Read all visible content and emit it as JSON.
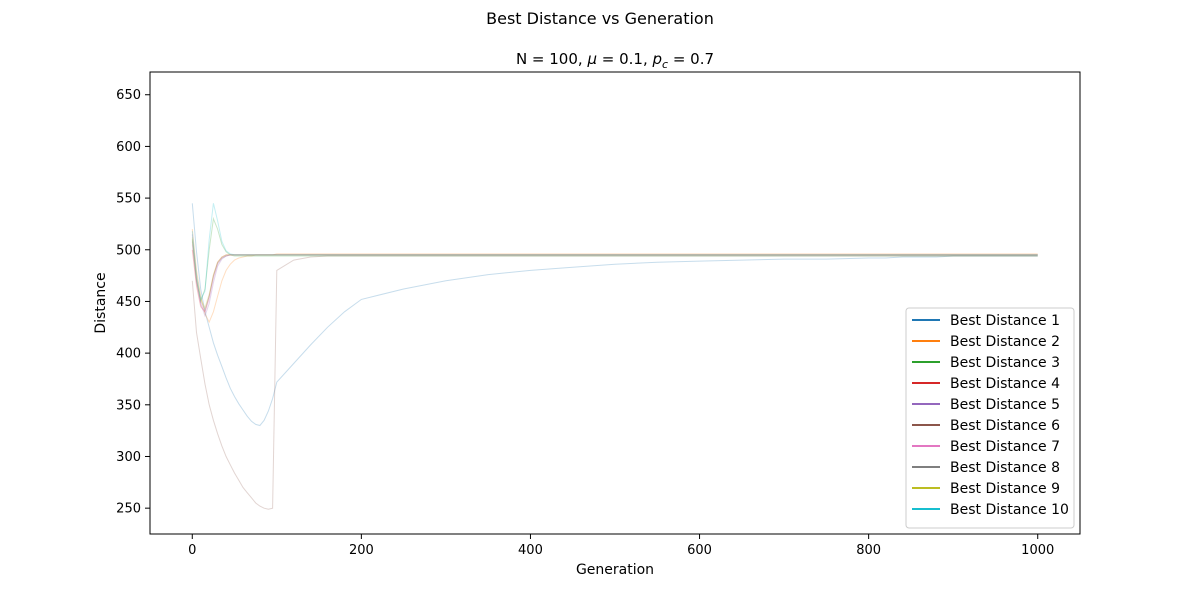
{
  "figure": {
    "suptitle": "Best Distance vs Generation"
  },
  "chart_data": {
    "type": "line",
    "title_prefix": "N = 100, ",
    "title_mu": "μ",
    "title_mid": " = 0.1, ",
    "title_p": "p",
    "title_p_sub": "c",
    "title_suffix": " = 0.7",
    "xlabel": "Generation",
    "ylabel": "Distance",
    "xlim": [
      -50,
      1050
    ],
    "ylim": [
      225,
      672
    ],
    "xticks": [
      0,
      200,
      400,
      600,
      800,
      1000
    ],
    "yticks": [
      250,
      300,
      350,
      400,
      450,
      500,
      550,
      600,
      650
    ],
    "legend_position": "lower-right",
    "series_alpha": 0.25,
    "series": [
      {
        "name": "Best Distance 1",
        "color": "#1f77b4",
        "values": [
          545,
          498,
          462,
          440,
          425,
          410,
          398,
          387,
          376,
          366,
          358,
          351,
          345,
          339,
          334,
          331,
          330,
          335,
          344,
          356,
          372,
          390,
          408,
          425,
          440,
          452,
          462,
          470,
          476,
          480,
          483,
          486,
          488,
          489,
          490,
          491,
          491,
          492,
          492,
          493,
          493,
          493,
          494,
          494,
          494,
          494,
          494,
          494,
          494,
          494,
          494
        ]
      },
      {
        "name": "Best Distance 2",
        "color": "#ff7f0e",
        "values": [
          520,
          480,
          455,
          438,
          430,
          440,
          455,
          470,
          480,
          486,
          490,
          492,
          493,
          494,
          494,
          495,
          495,
          495,
          495,
          495,
          496,
          496,
          496,
          496,
          496,
          496,
          496,
          496,
          496,
          496,
          496,
          496,
          496,
          496,
          496,
          496,
          496,
          496,
          496,
          496,
          496,
          496,
          496,
          496,
          496,
          496,
          496,
          496,
          496,
          496,
          496
        ]
      },
      {
        "name": "Best Distance 3",
        "color": "#2ca02c",
        "values": [
          510,
          470,
          450,
          462,
          500,
          530,
          520,
          505,
          498,
          495,
          494,
          494,
          494,
          494,
          494,
          494,
          494,
          494,
          494,
          494,
          494,
          494,
          494,
          494,
          494,
          494,
          494,
          494,
          494,
          494,
          494,
          494,
          494,
          494,
          494,
          494,
          494,
          494,
          494,
          494,
          494,
          494,
          494,
          494,
          494,
          494,
          494,
          494,
          494,
          494,
          494
        ]
      },
      {
        "name": "Best Distance 4",
        "color": "#d62728",
        "values": [
          500,
          465,
          445,
          440,
          455,
          475,
          488,
          493,
          495,
          495,
          495,
          495,
          495,
          495,
          495,
          495,
          495,
          495,
          495,
          495,
          495,
          495,
          495,
          495,
          495,
          495,
          495,
          495,
          495,
          495,
          495,
          495,
          495,
          495,
          495,
          495,
          495,
          495,
          495,
          495,
          495,
          495,
          495,
          495,
          495,
          495,
          495,
          495,
          495,
          495,
          495
        ]
      },
      {
        "name": "Best Distance 5",
        "color": "#9467bd",
        "values": [
          515,
          472,
          448,
          436,
          448,
          468,
          484,
          491,
          494,
          495,
          495,
          495,
          495,
          495,
          495,
          495,
          495,
          495,
          495,
          495,
          495,
          495,
          495,
          495,
          495,
          495,
          495,
          495,
          495,
          495,
          495,
          495,
          495,
          495,
          495,
          495,
          495,
          495,
          495,
          495,
          495,
          495,
          495,
          495,
          495,
          495,
          495,
          495,
          495,
          495,
          495
        ]
      },
      {
        "name": "Best Distance 6",
        "color": "#8c564b",
        "values": [
          470,
          420,
          395,
          370,
          350,
          335,
          322,
          310,
          300,
          292,
          284,
          277,
          270,
          265,
          260,
          255,
          252,
          250,
          249,
          250,
          480,
          490,
          493,
          494,
          494,
          494,
          494,
          494,
          494,
          494,
          494,
          494,
          494,
          494,
          494,
          494,
          494,
          494,
          494,
          494,
          494,
          494,
          494,
          494,
          494,
          494,
          494,
          494,
          494,
          494,
          494
        ]
      },
      {
        "name": "Best Distance 7",
        "color": "#e377c2",
        "values": [
          505,
          468,
          447,
          440,
          452,
          472,
          486,
          492,
          494,
          495,
          495,
          495,
          495,
          495,
          495,
          495,
          495,
          495,
          495,
          495,
          495,
          495,
          495,
          495,
          495,
          495,
          495,
          495,
          495,
          495,
          495,
          495,
          495,
          495,
          495,
          495,
          495,
          495,
          495,
          495,
          495,
          495,
          495,
          495,
          495,
          495,
          495,
          495,
          495,
          495,
          495
        ]
      },
      {
        "name": "Best Distance 8",
        "color": "#7f7f7f",
        "values": [
          508,
          470,
          450,
          442,
          455,
          474,
          487,
          492,
          494,
          495,
          495,
          495,
          495,
          495,
          495,
          495,
          495,
          495,
          495,
          495,
          495,
          495,
          495,
          495,
          495,
          495,
          495,
          495,
          495,
          495,
          495,
          495,
          495,
          495,
          495,
          495,
          495,
          495,
          495,
          495,
          495,
          495,
          495,
          495,
          495,
          495,
          495,
          495,
          495,
          495,
          495
        ]
      },
      {
        "name": "Best Distance 9",
        "color": "#bcbd22",
        "values": [
          512,
          474,
          452,
          444,
          457,
          476,
          488,
          493,
          495,
          495,
          495,
          495,
          495,
          495,
          495,
          495,
          495,
          495,
          495,
          495,
          495,
          495,
          495,
          495,
          495,
          495,
          495,
          495,
          495,
          495,
          495,
          495,
          495,
          495,
          495,
          495,
          495,
          495,
          495,
          495,
          495,
          495,
          495,
          495,
          495,
          495,
          495,
          495,
          495,
          495,
          495
        ]
      },
      {
        "name": "Best Distance 10",
        "color": "#17becf",
        "values": [
          518,
          476,
          452,
          460,
          510,
          545,
          528,
          508,
          499,
          496,
          495,
          495,
          495,
          495,
          495,
          495,
          495,
          495,
          495,
          495,
          495,
          495,
          495,
          495,
          495,
          495,
          495,
          495,
          495,
          495,
          495,
          495,
          495,
          495,
          495,
          495,
          495,
          495,
          495,
          495,
          495,
          495,
          495,
          495,
          495,
          495,
          495,
          495,
          495,
          495,
          495
        ]
      }
    ],
    "x": [
      0,
      5,
      10,
      15,
      20,
      25,
      30,
      35,
      40,
      45,
      50,
      55,
      60,
      65,
      70,
      75,
      80,
      85,
      90,
      95,
      100,
      120,
      140,
      160,
      180,
      200,
      250,
      300,
      350,
      400,
      450,
      500,
      550,
      600,
      650,
      700,
      750,
      800,
      820,
      840,
      860,
      880,
      900,
      920,
      940,
      960,
      970,
      980,
      990,
      995,
      1000
    ]
  }
}
